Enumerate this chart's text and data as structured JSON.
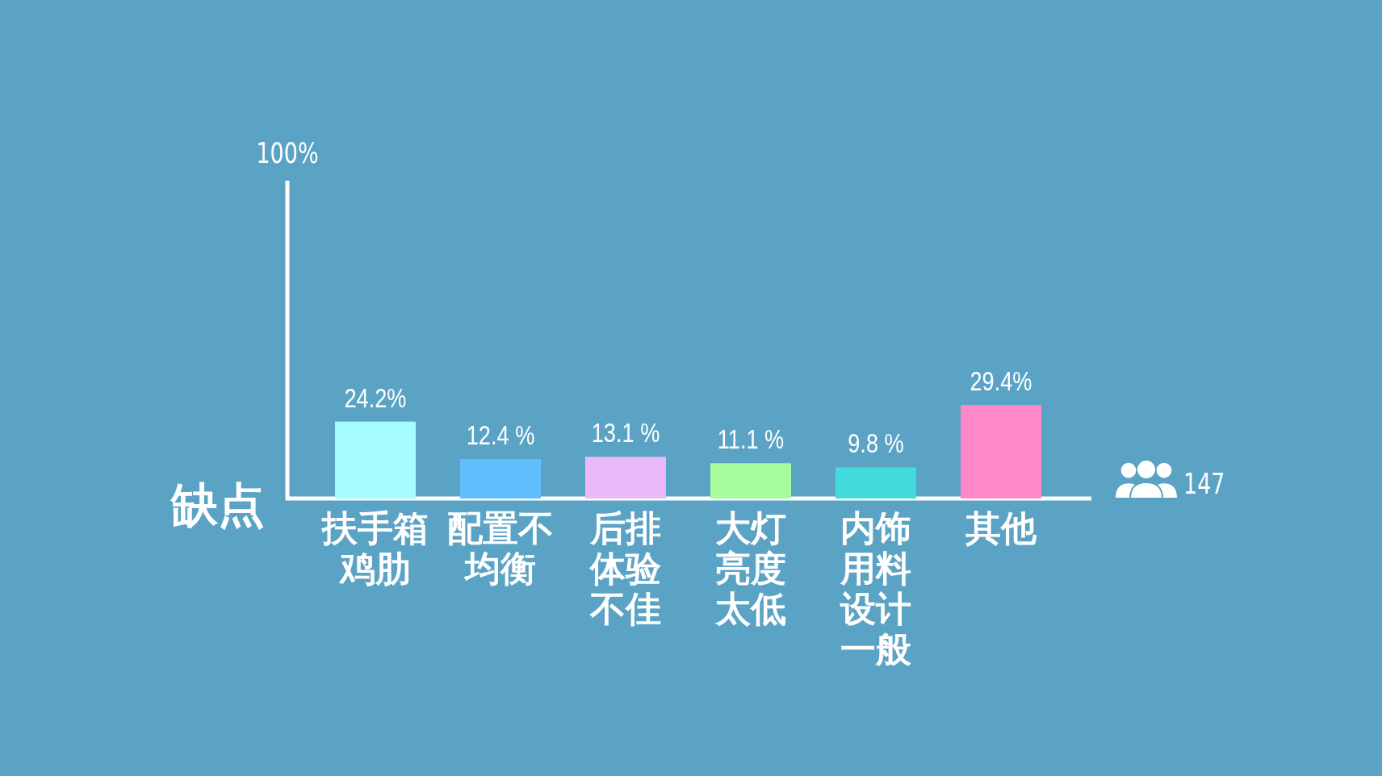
{
  "chart_data": {
    "type": "bar",
    "xlabel": "缺点",
    "ylim": [
      0,
      100
    ],
    "categories": [
      "扶手箱鸡肋",
      "配置不均衡",
      "后排体验不佳",
      "大灯亮度太低",
      "内饰用料设计一般",
      "其他"
    ],
    "values": [
      24.2,
      12.4,
      13.1,
      11.1,
      9.8,
      29.4
    ],
    "colors": [
      "#a6fcff",
      "#62bdfc",
      "#e9b9fa",
      "#a7fc9e",
      "#42dadb",
      "#ff88c8"
    ],
    "value_labels": [
      "24.2%",
      "12.4 %",
      "13.1 %",
      "11.1 %",
      "9.8 %",
      "29.4%"
    ],
    "annotations": [
      "100%",
      "147"
    ]
  }
}
